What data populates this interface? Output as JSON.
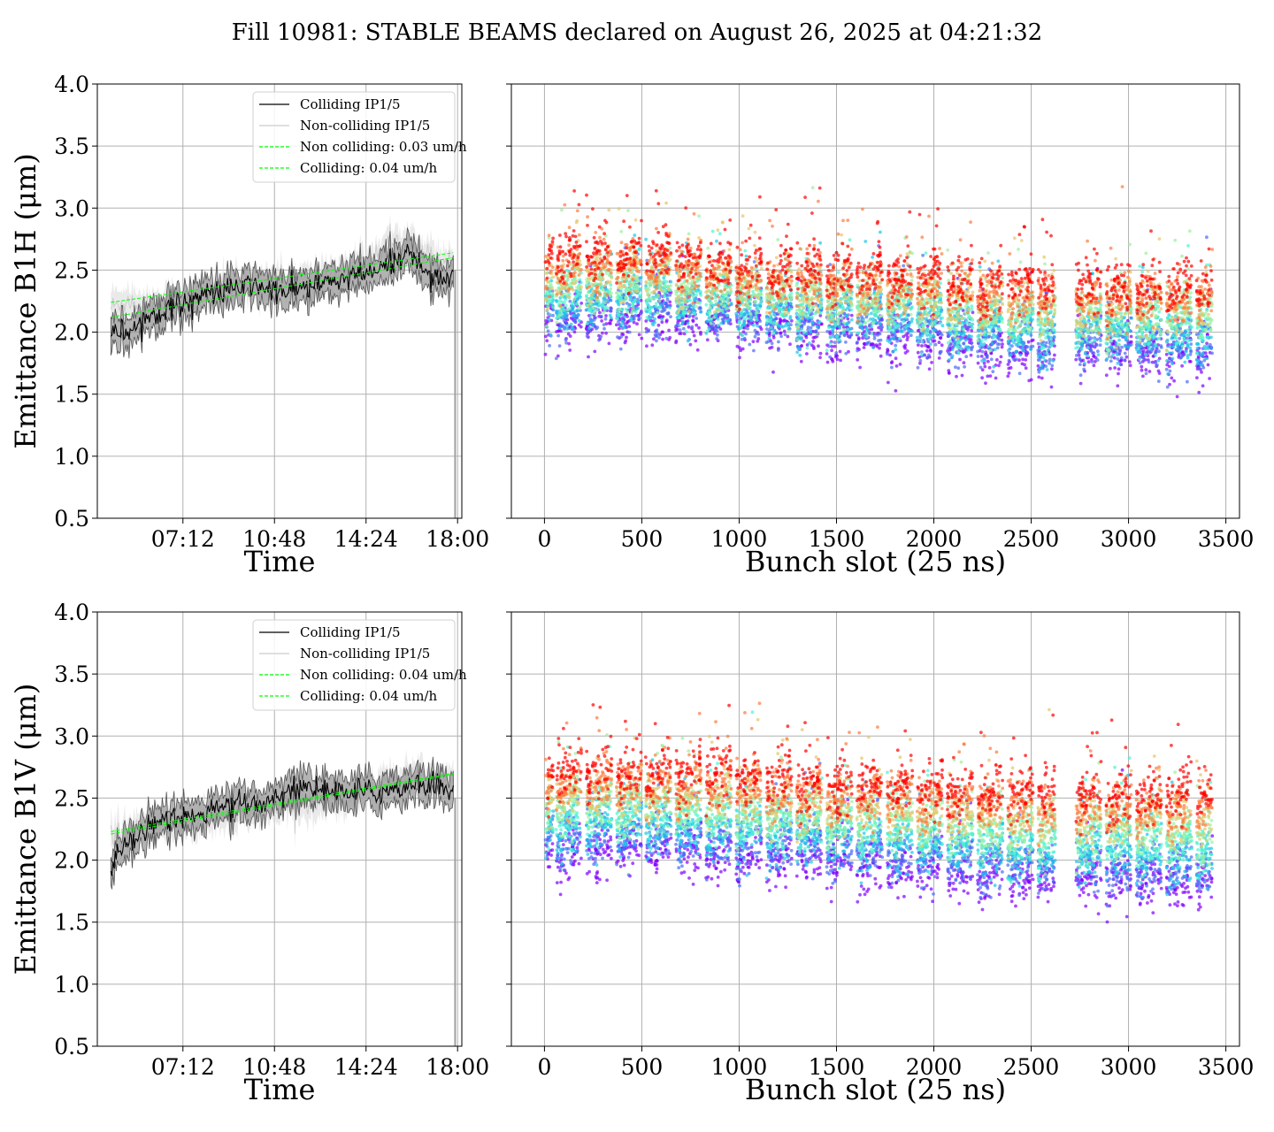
{
  "figure": {
    "suptitle": "Fill 10981: STABLE BEAMS declared on August 26, 2025 at 04:21:32"
  },
  "chart_data": [
    {
      "type": "line",
      "panel": "top-left",
      "xlabel": "Time",
      "ylabel": "Emittance B1H (μm)",
      "ylim": [
        0.5,
        4.0
      ],
      "yticks": [
        "0.5",
        "1.0",
        "1.5",
        "2.0",
        "2.5",
        "3.0",
        "3.5",
        "4.0"
      ],
      "xlim": [
        "03:50",
        "18:10"
      ],
      "xticks": [
        "07:12",
        "10:48",
        "14:24",
        "18:00"
      ],
      "grid": true,
      "legend_position": "top-center",
      "series": [
        {
          "name": "Colliding IP1/5",
          "color": "#000000",
          "style": "solid",
          "x": [
            "04:22",
            "05:00",
            "06:00",
            "07:00",
            "08:00",
            "09:00",
            "10:00",
            "11:00",
            "12:00",
            "13:00",
            "14:00",
            "15:00",
            "16:00",
            "17:00",
            "17:50"
          ],
          "y": [
            2.02,
            2.0,
            2.15,
            2.22,
            2.3,
            2.34,
            2.38,
            2.32,
            2.36,
            2.4,
            2.45,
            2.5,
            2.65,
            2.45,
            2.45
          ]
        },
        {
          "name": "Non-colliding IP1/5",
          "color": "#cccccc",
          "style": "solid",
          "x": [
            "04:22",
            "05:00",
            "06:00",
            "07:00",
            "08:00",
            "09:00",
            "10:00",
            "11:00",
            "12:00",
            "13:00",
            "14:00",
            "15:00",
            "16:00",
            "17:00",
            "17:50"
          ],
          "y": [
            2.2,
            2.25,
            2.2,
            2.25,
            2.3,
            2.35,
            2.38,
            2.42,
            2.4,
            2.45,
            2.5,
            2.65,
            2.75,
            2.6,
            2.55
          ]
        },
        {
          "name": "Non colliding: 0.03 um/h",
          "color": "#00ff00",
          "style": "dashed",
          "x": [
            "04:22",
            "17:50"
          ],
          "y": [
            2.24,
            2.64
          ]
        },
        {
          "name": "Colliding: 0.04 um/h",
          "color": "#00ff00",
          "style": "dashed",
          "x": [
            "04:22",
            "17:50"
          ],
          "y": [
            2.12,
            2.6
          ]
        }
      ]
    },
    {
      "type": "scatter",
      "panel": "top-right",
      "xlabel": "Bunch slot (25 ns)",
      "ylabel": "",
      "xlim": [
        -170,
        3570
      ],
      "ylim": [
        0.5,
        4.0
      ],
      "xticks": [
        "0",
        "500",
        "1000",
        "1500",
        "2000",
        "2500",
        "3000",
        "3500"
      ],
      "grid": true,
      "colormap": "rainbow (time progression: purple early → red late)",
      "trains": {
        "starts": [
          5,
          60,
          215,
          370,
          520,
          675,
          830,
          985,
          1140,
          1295,
          1450,
          1605,
          1760,
          1915,
          2070,
          2225,
          2380,
          2535,
          2730,
          2885,
          3040,
          3195,
          3350
        ],
        "width": [
          40,
          130,
          130,
          130,
          130,
          130,
          130,
          130,
          130,
          130,
          130,
          130,
          130,
          130,
          130,
          130,
          130,
          90,
          130,
          130,
          130,
          130,
          80
        ],
        "early_mean": [
          2.08,
          2.05,
          2.08,
          2.12,
          2.12,
          2.1,
          2.08,
          2.06,
          2.06,
          2.02,
          2.0,
          1.98,
          1.96,
          1.94,
          1.88,
          1.86,
          1.84,
          1.82,
          1.86,
          1.84,
          1.82,
          1.82,
          1.8
        ],
        "late_mean": [
          2.58,
          2.62,
          2.62,
          2.62,
          2.62,
          2.58,
          2.55,
          2.52,
          2.48,
          2.47,
          2.46,
          2.45,
          2.45,
          2.43,
          2.4,
          2.38,
          2.38,
          2.36,
          2.36,
          2.36,
          2.36,
          2.35,
          2.35
        ]
      },
      "colors": [
        "#8000ff",
        "#4a6bf6",
        "#1ac7e8",
        "#4df3ce",
        "#9cf0a0",
        "#e6c66b",
        "#ff7b3f",
        "#ff0000"
      ]
    },
    {
      "type": "line",
      "panel": "bottom-left",
      "xlabel": "Time",
      "ylabel": "Emittance B1V (μm)",
      "ylim": [
        0.5,
        4.0
      ],
      "yticks": [
        "0.5",
        "1.0",
        "1.5",
        "2.0",
        "2.5",
        "3.0",
        "3.5",
        "4.0"
      ],
      "xlim": [
        "03:50",
        "18:10"
      ],
      "xticks": [
        "07:12",
        "10:48",
        "14:24",
        "18:00"
      ],
      "grid": true,
      "legend_position": "top-center",
      "series": [
        {
          "name": "Colliding IP1/5",
          "color": "#000000",
          "style": "solid",
          "x": [
            "04:22",
            "05:00",
            "06:00",
            "07:00",
            "08:00",
            "09:00",
            "10:00",
            "11:00",
            "12:00",
            "13:00",
            "14:00",
            "15:00",
            "16:00",
            "17:00",
            "17:50"
          ],
          "y": [
            1.95,
            2.15,
            2.3,
            2.35,
            2.38,
            2.42,
            2.45,
            2.52,
            2.6,
            2.55,
            2.55,
            2.55,
            2.6,
            2.62,
            2.55
          ]
        },
        {
          "name": "Non-colliding IP1/5",
          "color": "#cccccc",
          "style": "solid",
          "x": [
            "04:22",
            "05:00",
            "06:00",
            "07:00",
            "08:00",
            "09:00",
            "10:00",
            "11:00",
            "12:00",
            "13:00",
            "14:00",
            "15:00",
            "16:00",
            "17:00",
            "17:50"
          ],
          "y": [
            2.2,
            2.22,
            2.28,
            2.32,
            2.34,
            2.36,
            2.4,
            2.44,
            2.46,
            2.5,
            2.55,
            2.62,
            2.65,
            2.66,
            2.62
          ]
        },
        {
          "name": "Non colliding: 0.04 um/h",
          "color": "#00ff00",
          "style": "dashed",
          "x": [
            "04:22",
            "17:50"
          ],
          "y": [
            2.23,
            2.7
          ]
        },
        {
          "name": "Colliding: 0.04 um/h",
          "color": "#00ff00",
          "style": "dashed",
          "x": [
            "04:22",
            "17:50"
          ],
          "y": [
            2.21,
            2.69
          ]
        }
      ]
    },
    {
      "type": "scatter",
      "panel": "bottom-right",
      "xlabel": "Bunch slot (25 ns)",
      "ylabel": "",
      "xlim": [
        -170,
        3570
      ],
      "ylim": [
        0.5,
        4.0
      ],
      "xticks": [
        "0",
        "500",
        "1000",
        "1500",
        "2000",
        "2500",
        "3000",
        "3500"
      ],
      "grid": true,
      "colormap": "rainbow (time progression: purple early → red late)",
      "trains": {
        "starts": [
          5,
          60,
          215,
          370,
          520,
          675,
          830,
          985,
          1140,
          1295,
          1450,
          1605,
          1760,
          1915,
          2070,
          2225,
          2380,
          2535,
          2730,
          2885,
          3040,
          3195,
          3350
        ],
        "width": [
          40,
          130,
          130,
          130,
          130,
          130,
          130,
          130,
          130,
          130,
          130,
          130,
          130,
          130,
          130,
          130,
          130,
          90,
          130,
          130,
          130,
          130,
          80
        ],
        "early_mean": [
          2.1,
          2.05,
          2.08,
          2.1,
          2.1,
          2.08,
          2.06,
          2.04,
          2.02,
          2.0,
          1.98,
          1.96,
          1.94,
          1.92,
          1.9,
          1.88,
          1.86,
          1.84,
          1.86,
          1.84,
          1.82,
          1.82,
          1.8
        ],
        "late_mean": [
          2.65,
          2.72,
          2.72,
          2.72,
          2.72,
          2.7,
          2.7,
          2.66,
          2.64,
          2.62,
          2.6,
          2.6,
          2.6,
          2.58,
          2.56,
          2.55,
          2.55,
          2.52,
          2.52,
          2.52,
          2.52,
          2.52,
          2.52
        ]
      },
      "colors": [
        "#8000ff",
        "#4a6bf6",
        "#1ac7e8",
        "#4df3ce",
        "#9cf0a0",
        "#e6c66b",
        "#ff7b3f",
        "#ff0000"
      ]
    }
  ]
}
